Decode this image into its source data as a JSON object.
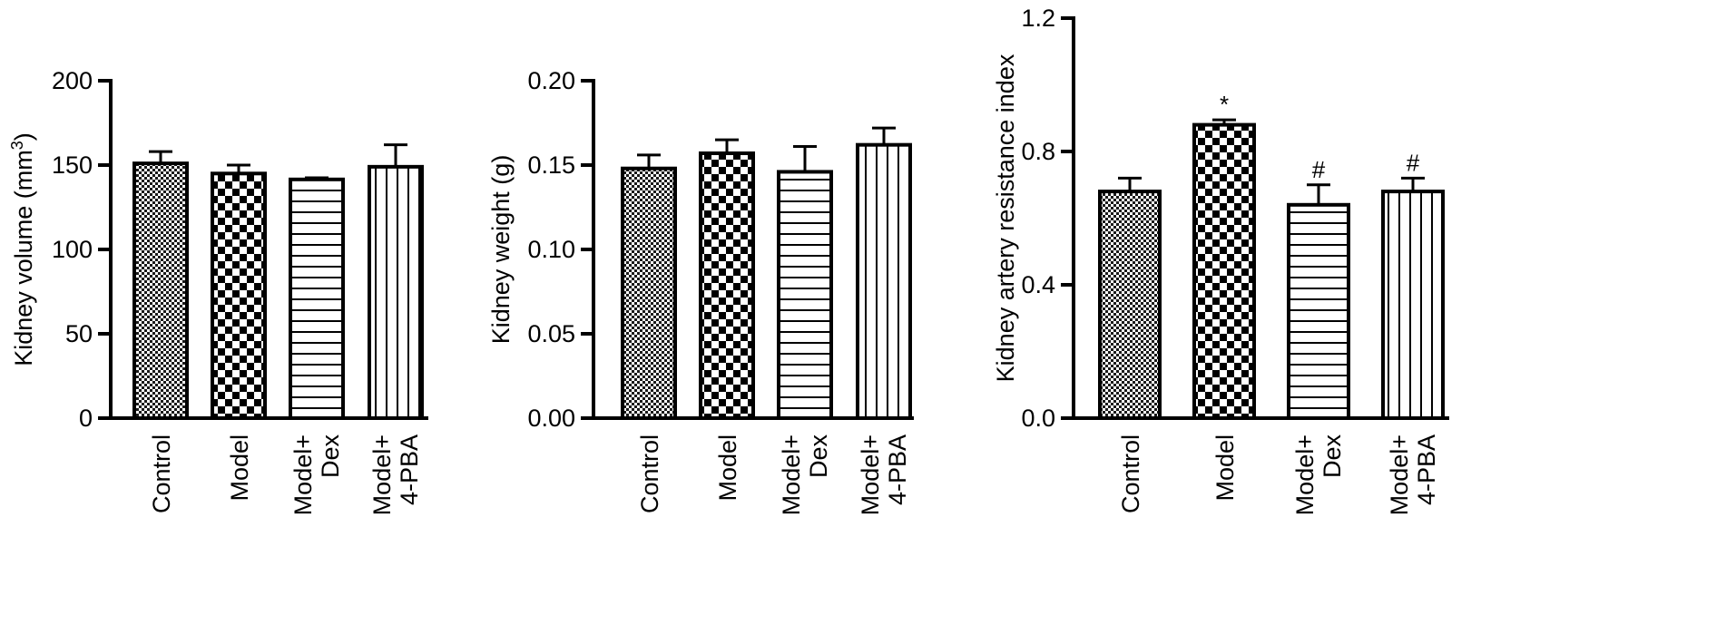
{
  "chart_data": [
    {
      "type": "bar",
      "categories": [
        [
          "Control"
        ],
        [
          "Model"
        ],
        [
          "Model+",
          "Dex"
        ],
        [
          "Model+",
          "4-PBA"
        ]
      ],
      "values": [
        151,
        145,
        141.5,
        149
      ],
      "errors": [
        7,
        5,
        1,
        13
      ],
      "patterns": [
        "fine-check",
        "checker",
        "horizontal",
        "vertical"
      ],
      "annotations": [
        "",
        "",
        "",
        ""
      ],
      "ylabel": {
        "main": "Kidney volume (mm",
        "sup": "3",
        "end": ")"
      },
      "ylim": [
        0,
        200
      ],
      "yticks": [
        "0",
        "50",
        "100",
        "150",
        "200"
      ],
      "ytick_values": [
        0,
        50,
        100,
        150,
        200
      ]
    },
    {
      "type": "bar",
      "categories": [
        [
          "Control"
        ],
        [
          "Model"
        ],
        [
          "Model+",
          "Dex"
        ],
        [
          "Model+",
          "4-PBA"
        ]
      ],
      "values": [
        0.148,
        0.157,
        0.146,
        0.162
      ],
      "errors": [
        0.008,
        0.008,
        0.015,
        0.01
      ],
      "patterns": [
        "fine-check",
        "checker",
        "horizontal",
        "vertical"
      ],
      "annotations": [
        "",
        "",
        "",
        ""
      ],
      "ylabel": {
        "main": "Kidney weight (g)",
        "sup": "",
        "end": ""
      },
      "ylim": [
        0,
        0.2
      ],
      "yticks": [
        "0.00",
        "0.05",
        "0.10",
        "0.15",
        "0.20"
      ],
      "ytick_values": [
        0,
        0.05,
        0.1,
        0.15,
        0.2
      ]
    },
    {
      "type": "bar",
      "categories": [
        [
          "Control"
        ],
        [
          "Model"
        ],
        [
          "Model+",
          "Dex"
        ],
        [
          "Model+",
          "4-PBA"
        ]
      ],
      "values": [
        0.68,
        0.88,
        0.64,
        0.68
      ],
      "errors": [
        0.04,
        0.015,
        0.06,
        0.04
      ],
      "patterns": [
        "fine-check",
        "checker",
        "horizontal",
        "vertical"
      ],
      "annotations": [
        "",
        "*",
        "#",
        "#"
      ],
      "ylabel": {
        "main": "Kidney artery resistance index",
        "sup": "",
        "end": ""
      },
      "ylim": [
        0,
        1.2
      ],
      "yticks": [
        "0.0",
        "0.4",
        "0.8",
        "1.2"
      ],
      "ytick_values": [
        0,
        0.4,
        0.8,
        1.2
      ]
    }
  ]
}
